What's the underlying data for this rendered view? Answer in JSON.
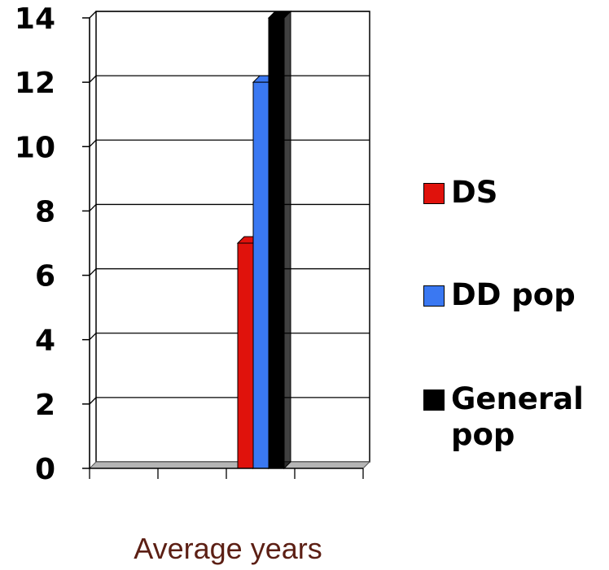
{
  "chart_data": {
    "type": "bar",
    "categories": [
      ""
    ],
    "series": [
      {
        "name": "DS",
        "values": [
          7
        ],
        "color": "#e0120c"
      },
      {
        "name": "DD pop",
        "values": [
          12
        ],
        "color": "#3a78f2"
      },
      {
        "name": "General pop",
        "values": [
          14
        ],
        "color": "#000000"
      }
    ],
    "xlabel": "Average years",
    "ylim": [
      0,
      14
    ],
    "yticks": [
      "0",
      "2",
      "4",
      "6",
      "8",
      "10",
      "12",
      "14"
    ],
    "grid": true,
    "legend_position": "right"
  },
  "legend": {
    "items": [
      {
        "label": "DS",
        "color": "#e0120c"
      },
      {
        "label": "DD pop",
        "color": "#3a78f2"
      },
      {
        "label": "General pop",
        "color": "#000000"
      }
    ]
  }
}
